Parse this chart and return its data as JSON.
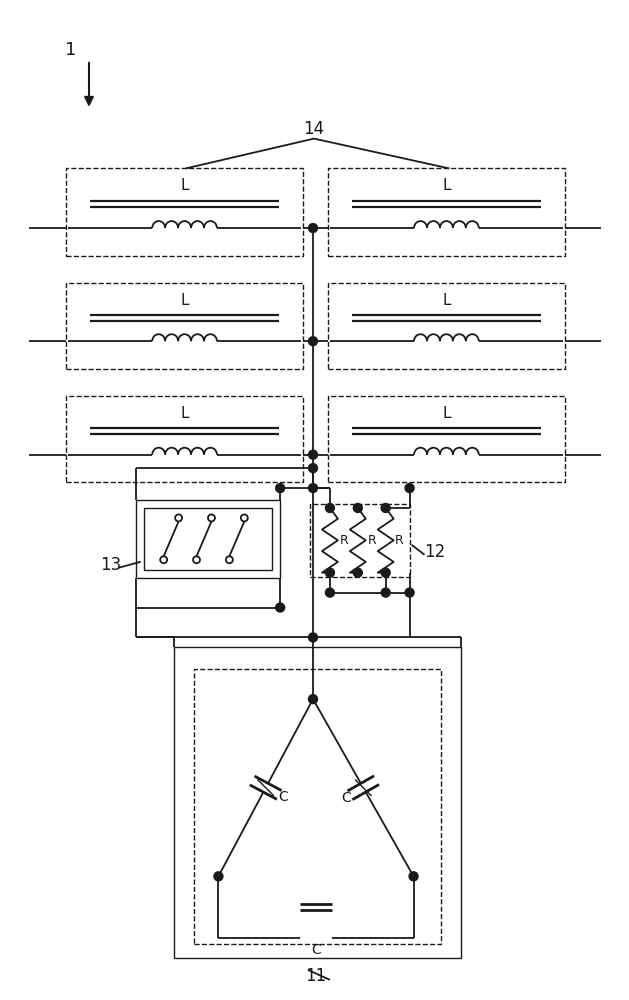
{
  "fig_width": 6.29,
  "fig_height": 10.0,
  "bg_color": "#ffffff",
  "line_color": "#1a1a1a",
  "lw": 1.3,
  "label_1": "1",
  "label_11": "11",
  "label_12": "12",
  "label_13": "13",
  "label_14": "14",
  "label_L": "L",
  "label_R": "R",
  "label_C": "C"
}
